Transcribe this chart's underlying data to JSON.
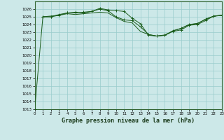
{
  "background_color": "#cce8e8",
  "grid_color": "#99cccc",
  "line_color": "#1a5c1a",
  "marker_color": "#1a5c1a",
  "xlabel": "Graphe pression niveau de la mer (hPa)",
  "xlabel_fontsize": 6.0,
  "ylim": [
    1013,
    1027
  ],
  "xlim": [
    0,
    23
  ],
  "yticks": [
    1013,
    1014,
    1015,
    1016,
    1017,
    1018,
    1019,
    1020,
    1021,
    1022,
    1023,
    1024,
    1025,
    1026
  ],
  "xticks": [
    0,
    1,
    2,
    3,
    4,
    5,
    6,
    7,
    8,
    9,
    10,
    11,
    12,
    13,
    14,
    15,
    16,
    17,
    18,
    19,
    20,
    21,
    22,
    23
  ],
  "series1_x": [
    0,
    1,
    2,
    3,
    4,
    5,
    6,
    7,
    8,
    9,
    10,
    11,
    12,
    13,
    14,
    15,
    16,
    17,
    18,
    19,
    20,
    21,
    22,
    23
  ],
  "series1_y": [
    1013,
    1025,
    1025,
    1025.2,
    1025.5,
    1025.5,
    1025.6,
    1025.7,
    1026.1,
    1025.9,
    1025.8,
    1025.7,
    1024.8,
    1024.1,
    1022.6,
    1022.5,
    1022.6,
    1023.1,
    1023.3,
    1023.9,
    1024.0,
    1024.5,
    1025.1,
    1025.2
  ],
  "series2_x": [
    1,
    2,
    3,
    4,
    5,
    6,
    7,
    8,
    9,
    10,
    11,
    12,
    13,
    14,
    15,
    16,
    17,
    18,
    19,
    20,
    21,
    22,
    23
  ],
  "series2_y": [
    1025,
    1025,
    1025.3,
    1025.5,
    1025.6,
    1025.5,
    1025.7,
    1026.0,
    1025.8,
    1025.0,
    1024.6,
    1024.5,
    1023.7,
    1022.7,
    1022.5,
    1022.6,
    1023.2,
    1023.5,
    1024.0,
    1024.1,
    1024.7,
    1025.1,
    1025.2
  ],
  "series3_x": [
    1,
    2,
    3,
    4,
    5,
    6,
    7,
    8,
    9,
    10,
    11,
    12,
    13,
    14,
    15,
    16,
    17,
    18,
    19,
    20,
    21,
    22,
    23
  ],
  "series3_y": [
    1025,
    1025.1,
    1025.2,
    1025.4,
    1025.3,
    1025.4,
    1025.5,
    1025.6,
    1025.5,
    1024.9,
    1024.4,
    1024.2,
    1023.1,
    1022.7,
    1022.5,
    1022.65,
    1023.15,
    1023.5,
    1024.0,
    1024.15,
    1024.65,
    1025.05,
    1025.2
  ]
}
